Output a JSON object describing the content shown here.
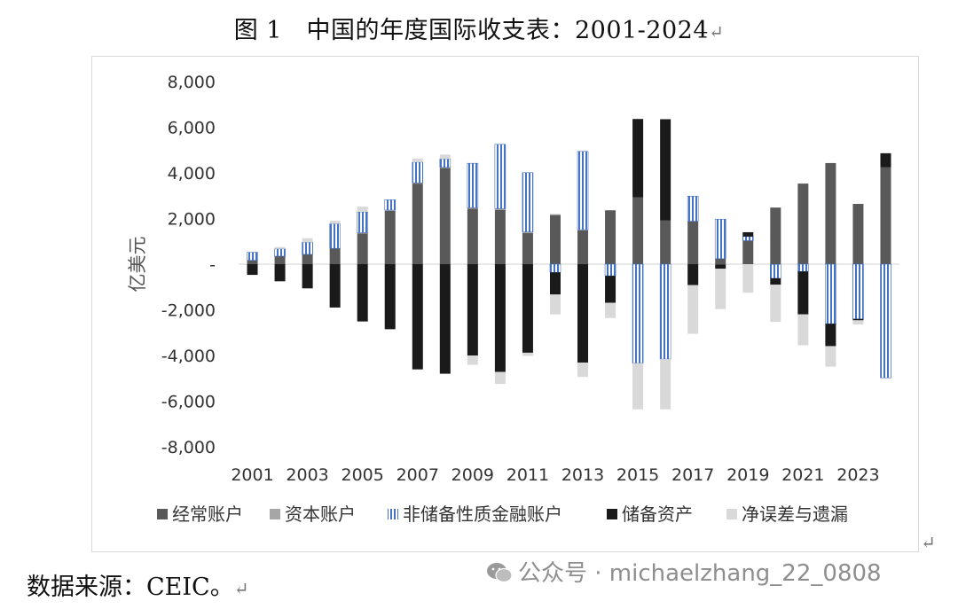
{
  "title": "图 1　中国的年度国际收支表：2001-2024",
  "return_mark": "↵",
  "source": "数据来源：CEIC。",
  "watermark": "公众号 · michaelzhang_22_0808",
  "chart_data": {
    "type": "bar",
    "stacked": true,
    "ylabel": "亿美元",
    "ylim": [
      -8000,
      8000
    ],
    "yticks": [
      8000,
      6000,
      4000,
      2000,
      0,
      -2000,
      -4000,
      -6000,
      -8000
    ],
    "ytick_labels": [
      "8,000",
      "6,000",
      "4,000",
      "2,000",
      "-",
      "-2,000",
      "-4,000",
      "-6,000",
      "-8,000"
    ],
    "categories": [
      "2001",
      "2002",
      "2003",
      "2004",
      "2005",
      "2006",
      "2007",
      "2008",
      "2009",
      "2010",
      "2011",
      "2012",
      "2013",
      "2014",
      "2015",
      "2016",
      "2017",
      "2018",
      "2019",
      "2020",
      "2021",
      "2022",
      "2023",
      "2024"
    ],
    "xtick_labels": [
      "2001",
      "",
      "2003",
      "",
      "2005",
      "",
      "2007",
      "",
      "2009",
      "",
      "2011",
      "",
      "2013",
      "",
      "2015",
      "",
      "2017",
      "",
      "2019",
      "",
      "2021",
      "",
      "2023",
      ""
    ],
    "legend_position": "bottom",
    "series": [
      {
        "name": "经常账户",
        "color": "#595959",
        "pattern": "solid",
        "values": [
          170,
          350,
          430,
          690,
          1340,
          2330,
          3530,
          4210,
          2430,
          2380,
          1360,
          2150,
          1480,
          2360,
          2930,
          1910,
          1880,
          240,
          1030,
          2480,
          3530,
          4430,
          2640,
          4240
        ]
      },
      {
        "name": "资本账户",
        "color": "#a6a6a6",
        "pattern": "solid",
        "values": [
          0,
          0,
          0,
          0,
          40,
          40,
          30,
          30,
          40,
          50,
          50,
          40,
          30,
          0,
          0,
          0,
          0,
          -10,
          0,
          -10,
          0,
          0,
          0,
          0
        ]
      },
      {
        "name": "非储备性质金融账户",
        "color": "#4472c4",
        "pattern": "vstripe",
        "values": [
          350,
          320,
          530,
          1080,
          910,
          450,
          910,
          370,
          1950,
          2820,
          2600,
          -360,
          3430,
          -510,
          -4340,
          -4160,
          1100,
          1730,
          180,
          -610,
          -320,
          -2610,
          -2400,
          -4980
        ]
      },
      {
        "name": "储备资产",
        "color": "#1a1a1a",
        "pattern": "solid",
        "values": [
          -470,
          -750,
          -1060,
          -1900,
          -2510,
          -2850,
          -4610,
          -4800,
          -4000,
          -4720,
          -3880,
          -970,
          -4310,
          -1180,
          3430,
          4440,
          -920,
          -190,
          190,
          -280,
          -1880,
          -980,
          -60,
          620
        ]
      },
      {
        "name": "净误差与遗漏",
        "color": "#d9d9d9",
        "pattern": "solid",
        "values": [
          0,
          80,
          180,
          130,
          230,
          0,
          160,
          190,
          -410,
          -530,
          -140,
          -870,
          -630,
          -670,
          -2020,
          -2200,
          -2130,
          -1770,
          -1250,
          -1630,
          -1350,
          -900,
          -180,
          0
        ]
      }
    ]
  }
}
